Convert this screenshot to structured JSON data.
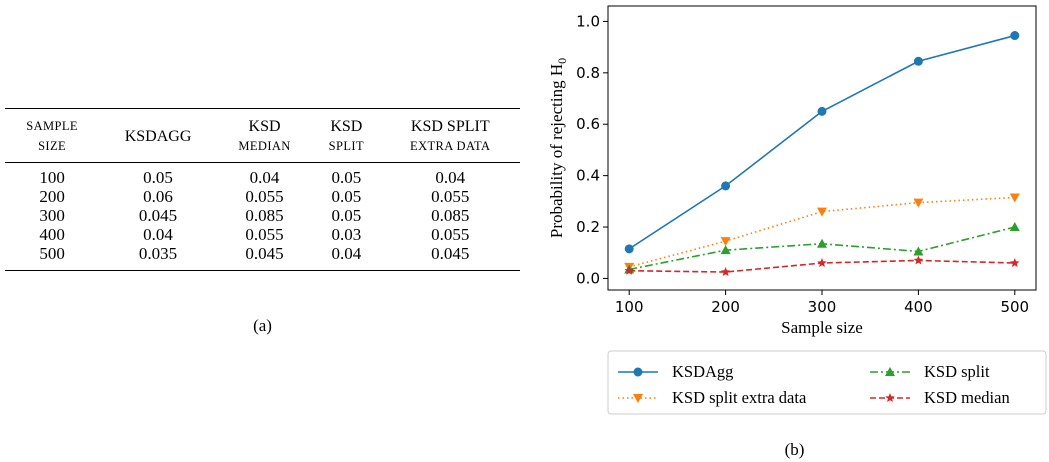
{
  "table": {
    "headers": [
      {
        "line1": "SAMPLE",
        "line2": "SIZE",
        "line1_small": true,
        "line2_small": true
      },
      {
        "line1": "KSDAGG",
        "line2": "",
        "line1_small": false,
        "line2_small": false
      },
      {
        "line1": "KSD",
        "line2": "MEDIAN",
        "line1_small": false,
        "line2_small": true
      },
      {
        "line1": "KSD",
        "line2": "SPLIT",
        "line1_small": false,
        "line2_small": true
      },
      {
        "line1": "KSD SPLIT",
        "line2": "EXTRA DATA",
        "line1_small": false,
        "line2_small": true
      }
    ],
    "rows": [
      [
        "100",
        "0.05",
        "0.04",
        "0.05",
        "0.04"
      ],
      [
        "200",
        "0.06",
        "0.055",
        "0.05",
        "0.055"
      ],
      [
        "300",
        "0.045",
        "0.085",
        "0.05",
        "0.085"
      ],
      [
        "400",
        "0.04",
        "0.055",
        "0.03",
        "0.055"
      ],
      [
        "500",
        "0.035",
        "0.045",
        "0.04",
        "0.045"
      ]
    ],
    "caption": "(a)"
  },
  "chart_data": {
    "type": "line",
    "x": [
      100,
      200,
      300,
      400,
      500
    ],
    "xlabel": "Sample size",
    "ylabel": "Probability of rejecting H",
    "ylabel_subscript": "0",
    "xlim": [
      100,
      500
    ],
    "ylim": [
      0,
      1
    ],
    "x_ticks": [
      "100",
      "200",
      "300",
      "400",
      "500"
    ],
    "y_ticks": [
      "0.0",
      "0.2",
      "0.4",
      "0.6",
      "0.8",
      "1.0"
    ],
    "grid": false,
    "legend_position": "below",
    "series": [
      {
        "name": "KSDAgg",
        "values": [
          0.115,
          0.36,
          0.65,
          0.845,
          0.945
        ],
        "color": "#1f77b4",
        "dash": "solid",
        "marker": "circle"
      },
      {
        "name": "KSD split extra data",
        "values": [
          0.045,
          0.145,
          0.26,
          0.295,
          0.315
        ],
        "color": "#ff7f0e",
        "dash": "dotted",
        "marker": "triangle-down"
      },
      {
        "name": "KSD split",
        "values": [
          0.035,
          0.11,
          0.135,
          0.105,
          0.2
        ],
        "color": "#2ca02c",
        "dash": "dashdot",
        "marker": "triangle-up"
      },
      {
        "name": "KSD median",
        "values": [
          0.03,
          0.025,
          0.06,
          0.07,
          0.06
        ],
        "color": "#d62728",
        "dash": "dashed",
        "marker": "star"
      }
    ],
    "caption": "(b)"
  }
}
